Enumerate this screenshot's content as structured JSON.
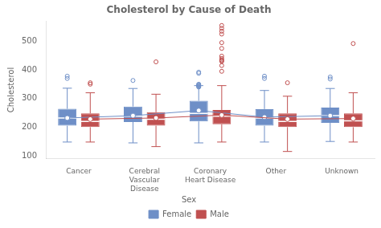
{
  "chart_data": {
    "type": "box",
    "title": "Cholesterol by Cause of Death",
    "ylabel": "Cholesterol",
    "categories": [
      "Cancer",
      "Cerebral\nVascular\nDisease",
      "Coronary\nHeart Disease",
      "Other",
      "Unknown"
    ],
    "ylim": [
      90,
      570
    ],
    "yticks": [
      100,
      200,
      300,
      400,
      500
    ],
    "grid": false,
    "legend": "bottom",
    "legend_title": "Sex",
    "series": [
      {
        "name": "Female",
        "color": "#6E8FC7",
        "boxes": [
          {
            "q1": 205,
            "median": 232,
            "q3": 264,
            "whislo": 148,
            "whishi": 336,
            "mean": 232,
            "fliers": [
              370,
              378
            ]
          },
          {
            "q1": 218,
            "median": 238,
            "q3": 272,
            "whislo": 145,
            "whishi": 335,
            "mean": 240,
            "fliers": [
              363
            ]
          },
          {
            "q1": 220,
            "median": 248,
            "q3": 292,
            "whislo": 145,
            "whishi": 345,
            "mean": 258,
            "fliers": [
              340,
              342,
              344,
              346,
              348,
              350,
              388,
              392
            ]
          },
          {
            "q1": 205,
            "median": 232,
            "q3": 263,
            "whislo": 148,
            "whishi": 328,
            "mean": 235,
            "fliers": [
              370,
              378
            ]
          },
          {
            "q1": 215,
            "median": 240,
            "q3": 268,
            "whislo": 150,
            "whishi": 335,
            "mean": 240,
            "fliers": [
              368,
              375
            ]
          }
        ]
      },
      {
        "name": "Male",
        "color": "#C05050",
        "boxes": [
          {
            "q1": 200,
            "median": 220,
            "q3": 248,
            "whislo": 148,
            "whishi": 320,
            "mean": 228,
            "fliers": [
              350,
              355
            ]
          },
          {
            "q1": 205,
            "median": 228,
            "q3": 252,
            "whislo": 132,
            "whishi": 315,
            "mean": 232,
            "fliers": [
              428
            ]
          },
          {
            "q1": 210,
            "median": 238,
            "q3": 260,
            "whislo": 148,
            "whishi": 345,
            "mean": 242,
            "fliers": [
              395,
              415,
              430,
              432,
              435,
              440,
              448,
              475,
              495,
              525,
              535,
              545,
              555
            ]
          },
          {
            "q1": 200,
            "median": 220,
            "q3": 248,
            "whislo": 115,
            "whishi": 308,
            "mean": 228,
            "fliers": [
              355
            ]
          },
          {
            "q1": 200,
            "median": 222,
            "q3": 248,
            "whislo": 148,
            "whishi": 320,
            "mean": 230,
            "fliers": [
              492
            ]
          }
        ]
      }
    ]
  }
}
